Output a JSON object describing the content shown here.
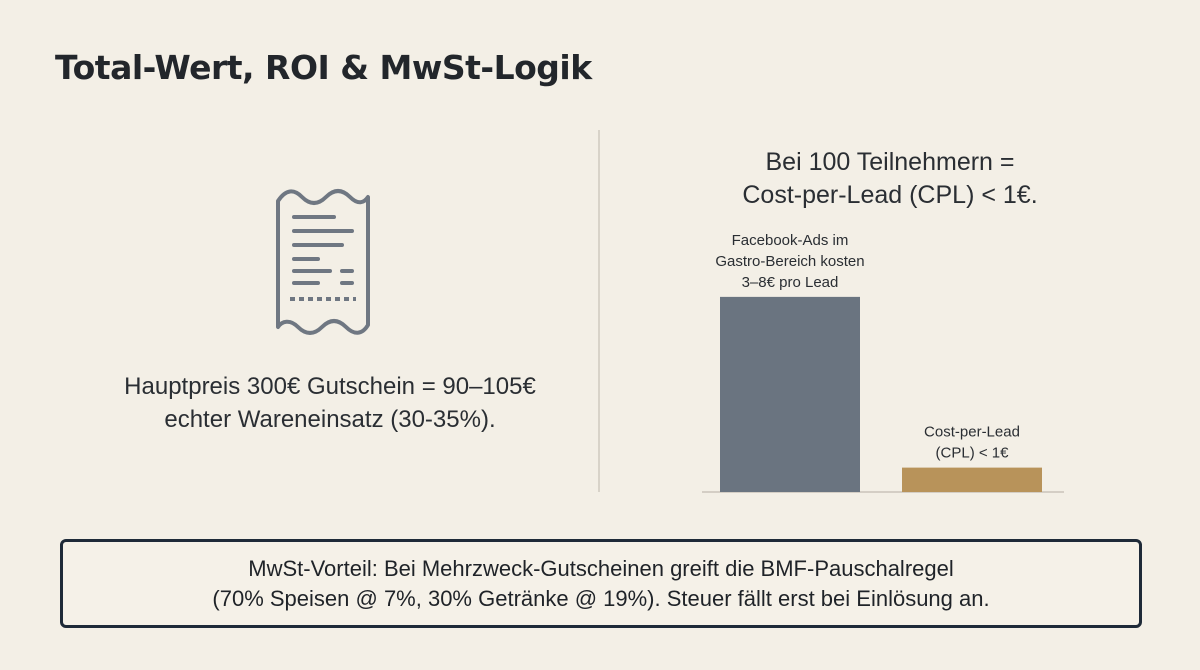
{
  "title": "Total-Wert, ROI & MwSt-Logik",
  "left": {
    "icon": "receipt-icon",
    "line1": "Hauptpreis 300€ Gutschein = 90–105€",
    "line2": "echter Wareneinsatz (30-35%)."
  },
  "right": {
    "line1": "Bei 100 Teilnehmern =",
    "line2": "Cost-per-Lead (CPL) < 1€."
  },
  "chart_data": {
    "type": "bar",
    "categories": [
      "Facebook-Ads im Gastro-Bereich kosten 3–8€ pro Lead",
      "Cost-per-Lead (CPL) < 1€"
    ],
    "series": [
      {
        "values": [
          8,
          1
        ]
      }
    ],
    "colors": [
      "#6a7480",
      "#b8935a"
    ],
    "labels": [
      [
        "Facebook-Ads im",
        "Gastro-Bereich kosten",
        "3–8€ pro Lead"
      ],
      [
        "Cost-per-Lead",
        "(CPL) < 1€"
      ]
    ],
    "ylim": [
      0,
      8.2
    ]
  },
  "callout": {
    "line1": "MwSt-Vorteil: Bei Mehrzweck-Gutscheinen greift die BMF-Pauschalregel",
    "line2": "(70% Speisen @ 7%, 30% Getränke @ 19%). Steuer fällt erst bei Einlösung an."
  }
}
